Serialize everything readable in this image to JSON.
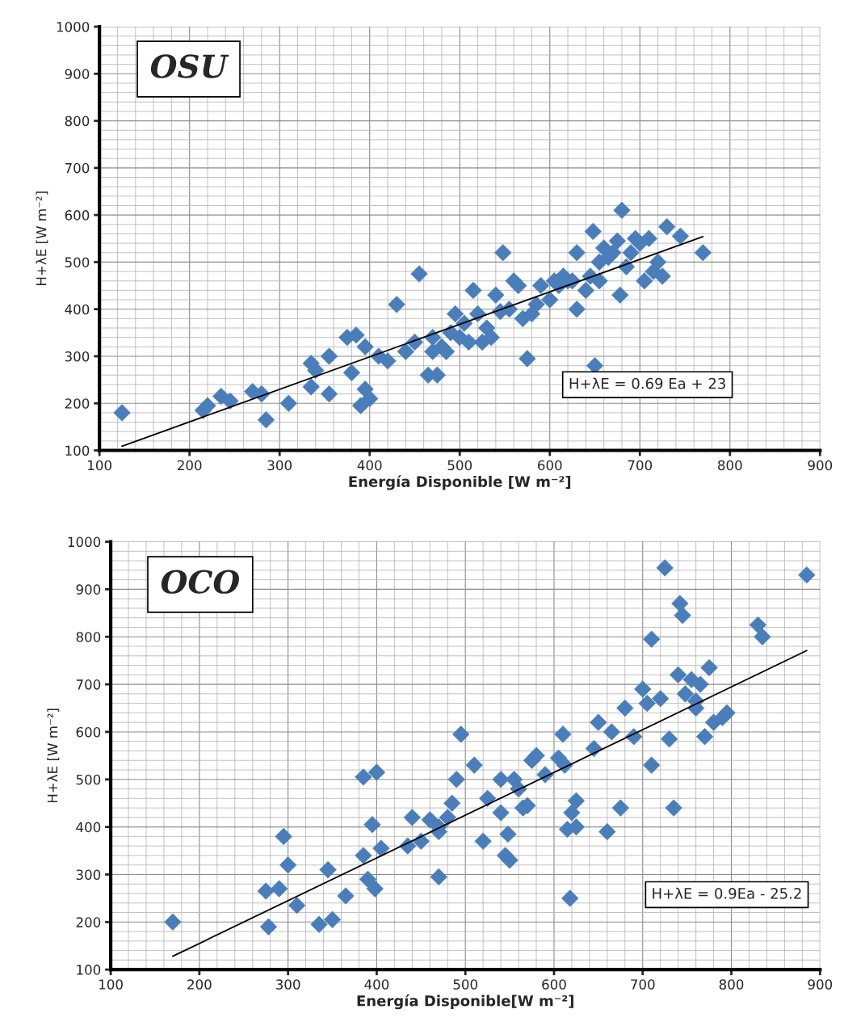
{
  "chart_data": [
    {
      "type": "scatter",
      "title": "OSU",
      "xlabel": "Energía Disponible [W m⁻²]",
      "ylabel": "H+λE [W m⁻²]",
      "xlim": [
        100,
        900
      ],
      "xticks": [
        100,
        200,
        300,
        400,
        500,
        600,
        700,
        800,
        900
      ],
      "ylim": [
        100,
        1000
      ],
      "yticks": [
        100,
        200,
        300,
        400,
        500,
        600,
        700,
        800,
        900,
        1000
      ],
      "grid": true,
      "legend": false,
      "marker": "diamond",
      "annotations": [
        "H+λE = 0.69 Ea + 23"
      ],
      "series": [
        {
          "color": "#4a7ebb",
          "x": [
            125,
            215,
            220,
            235,
            245,
            270,
            280,
            285,
            310,
            335,
            335,
            340,
            355,
            355,
            375,
            380,
            385,
            390,
            395,
            400,
            395,
            410,
            420,
            430,
            440,
            450,
            455,
            465,
            470,
            475,
            480,
            485,
            490,
            495,
            500,
            505,
            510,
            515,
            520,
            525,
            530,
            535,
            540,
            548,
            555,
            560,
            565,
            570,
            575,
            580,
            585,
            590,
            600,
            605,
            610,
            615,
            625,
            630,
            630,
            640,
            645,
            648,
            650,
            655,
            660,
            665,
            670,
            675,
            678,
            680,
            685,
            690,
            695,
            700,
            705,
            710,
            715,
            720,
            725,
            730,
            745,
            770,
            655,
            620,
            545,
            470
          ],
          "values": [
            180,
            185,
            195,
            215,
            205,
            225,
            220,
            165,
            200,
            285,
            235,
            270,
            300,
            220,
            340,
            265,
            345,
            195,
            230,
            210,
            320,
            300,
            290,
            410,
            310,
            330,
            475,
            260,
            340,
            260,
            320,
            310,
            350,
            390,
            340,
            370,
            330,
            440,
            390,
            330,
            360,
            340,
            430,
            520,
            400,
            460,
            450,
            380,
            295,
            390,
            410,
            450,
            420,
            460,
            450,
            470,
            460,
            400,
            520,
            440,
            470,
            565,
            280,
            500,
            530,
            510,
            520,
            545,
            430,
            610,
            490,
            520,
            550,
            540,
            460,
            550,
            480,
            500,
            470,
            575,
            555,
            520,
            460,
            460,
            395,
            310
          ]
        },
        {
          "type": "line",
          "color": "#000000",
          "marker": "none",
          "x": [
            125,
            770
          ],
          "values": [
            109,
            554
          ]
        }
      ]
    },
    {
      "type": "scatter",
      "title": "OCO",
      "xlabel": "Energía Disponible[W m⁻²]",
      "ylabel": "H+λE [W m⁻²]",
      "xlim": [
        100,
        900
      ],
      "xticks": [
        100,
        200,
        300,
        400,
        500,
        600,
        700,
        800,
        900
      ],
      "ylim": [
        100,
        1000
      ],
      "yticks": [
        100,
        200,
        300,
        400,
        500,
        600,
        700,
        800,
        900,
        1000
      ],
      "grid": true,
      "legend": false,
      "marker": "diamond",
      "annotations": [
        "H+λE = 0.9Ea - 25.2"
      ],
      "series": [
        {
          "color": "#4a7ebb",
          "x": [
            170,
            275,
            278,
            290,
            295,
            300,
            310,
            335,
            345,
            350,
            365,
            385,
            385,
            390,
            395,
            398,
            400,
            405,
            435,
            440,
            450,
            460,
            470,
            470,
            480,
            485,
            490,
            495,
            510,
            520,
            525,
            540,
            540,
            545,
            548,
            550,
            555,
            560,
            565,
            570,
            575,
            580,
            590,
            605,
            610,
            612,
            615,
            618,
            620,
            625,
            625,
            645,
            650,
            660,
            665,
            675,
            680,
            690,
            700,
            705,
            710,
            710,
            720,
            725,
            730,
            735,
            740,
            742,
            745,
            748,
            755,
            760,
            765,
            770,
            775,
            780,
            790,
            795,
            830,
            835,
            885,
            760,
            470
          ],
          "values": [
            200,
            265,
            190,
            270,
            380,
            320,
            235,
            195,
            310,
            205,
            255,
            505,
            340,
            290,
            405,
            270,
            515,
            355,
            360,
            420,
            370,
            415,
            295,
            400,
            420,
            450,
            500,
            595,
            530,
            370,
            460,
            430,
            500,
            340,
            385,
            330,
            500,
            480,
            440,
            445,
            540,
            550,
            510,
            545,
            595,
            530,
            395,
            250,
            430,
            455,
            400,
            565,
            620,
            390,
            600,
            440,
            650,
            590,
            690,
            660,
            530,
            795,
            670,
            945,
            585,
            440,
            720,
            870,
            845,
            680,
            710,
            650,
            700,
            590,
            735,
            620,
            630,
            640,
            825,
            800,
            930,
            665,
            390
          ]
        },
        {
          "type": "line",
          "color": "#000000",
          "marker": "none",
          "x": [
            170,
            885
          ],
          "values": [
            128,
            771
          ]
        }
      ]
    }
  ]
}
